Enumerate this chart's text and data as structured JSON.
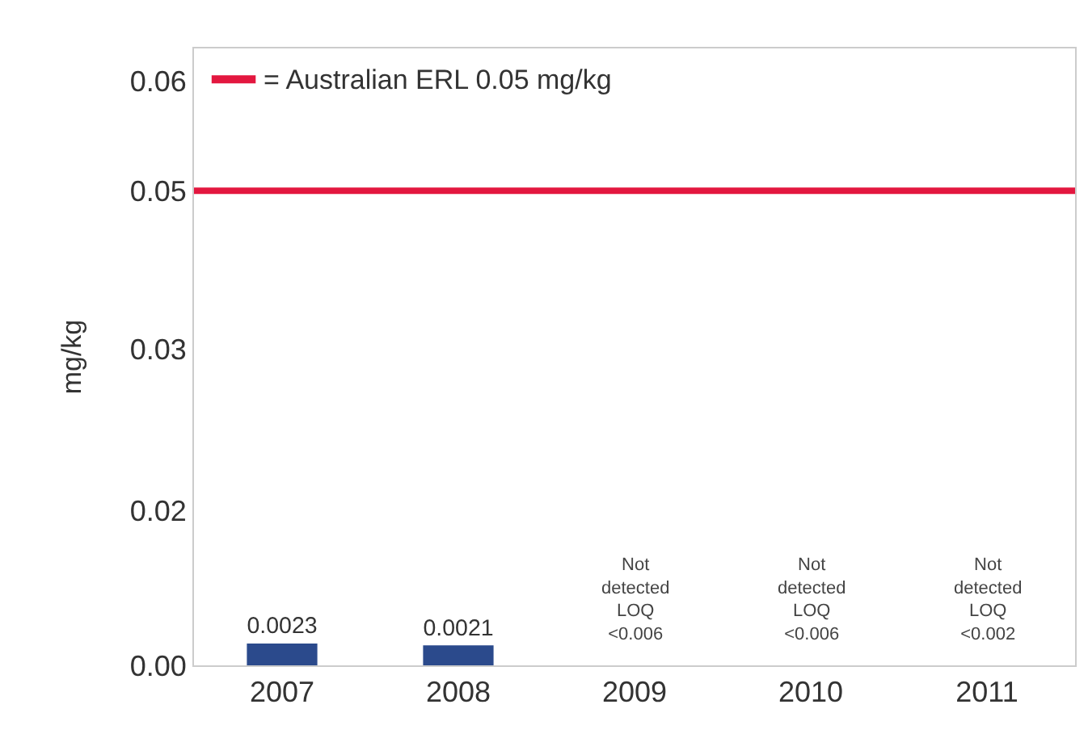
{
  "chart_data": {
    "type": "bar",
    "categories": [
      "2007",
      "2008",
      "2009",
      "2010",
      "2011"
    ],
    "values": [
      0.0023,
      0.0021,
      null,
      null,
      null
    ],
    "color": "#2b4a8c",
    "value_labels": [
      "0.0023",
      "0.0021",
      null,
      null,
      null
    ],
    "ylabel": "mg/kg",
    "ylim": [
      0,
      0.065
    ],
    "yticks": [
      {
        "value": 0,
        "label": "0.00"
      },
      {
        "value": 0.0163,
        "label": "0.02"
      },
      {
        "value": 0.0333,
        "label": "0.03"
      },
      0.05,
      {
        "value": 0.0616,
        "label": "0.06"
      }
    ],
    "grid": false,
    "legend": "top left",
    "ref_lines": [
      {
        "axis": "y",
        "value": 0.05,
        "label": "= Australian ERL 0.05 mg/kg",
        "color": "#e3173f"
      }
    ],
    "annotations": [
      "Not\ndetected\nLOQ\n<0.006",
      "Not\ndetected\nLOQ\n<0.006",
      "Not\ndetected\nLOQ\n<0.002"
    ]
  }
}
